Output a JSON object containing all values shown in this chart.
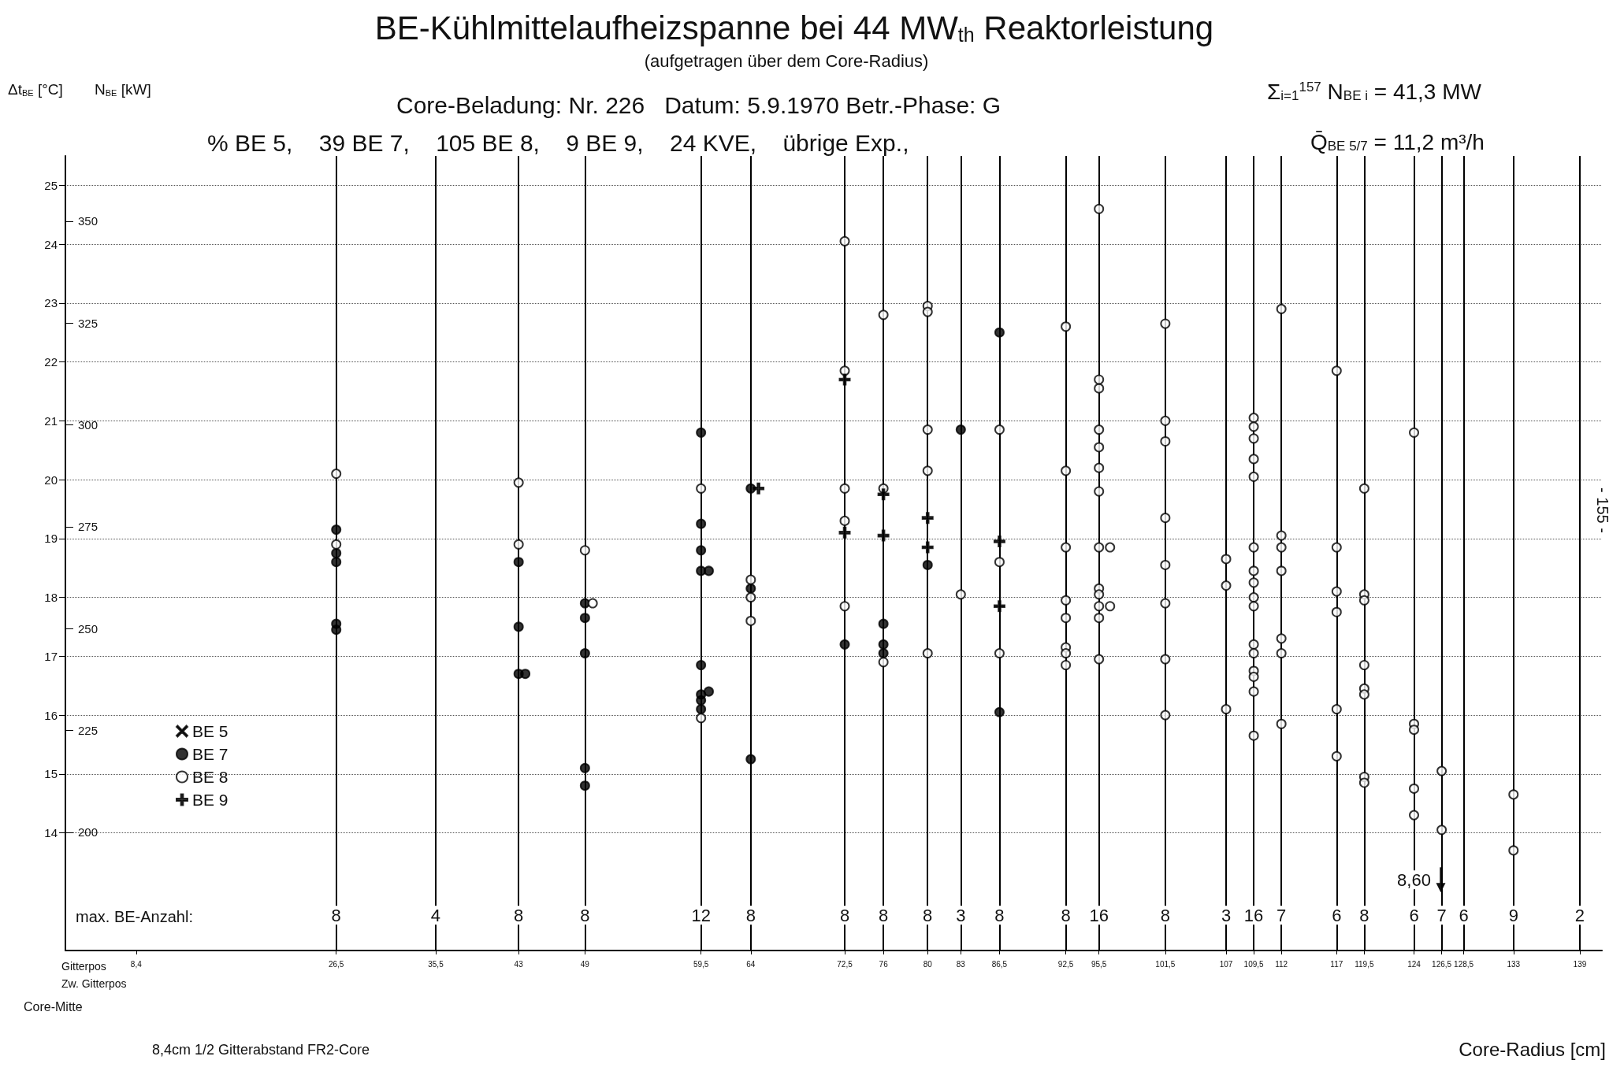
{
  "chart_data": {
    "type": "scatter",
    "title": "BE-Kühlmittelaufheizspanne bei 44 MW$_{th}$ Reaktorleistung",
    "subtitle": "(aufgetragen über dem Core-Radius)",
    "xlabel": "Core-Radius [cm]",
    "ylabel": "Δt$_{BE}$ [°C]",
    "y2label": "N$_{BE}$ [kW]",
    "annotations": [
      "Core-Beladung: Nr. 226   Datum: 5.9.1970 Betr.-Phase: G",
      "Σ$_{i=1}$$^{157}$ N$_{BE i}$ = 41,3 MW",
      "% BE 5,    39 BE 7,    105 BE 8,    9 BE 9,    24 KVE,    übrige Exp.,",
      "Q̄$_{BE 5/7}$ = 11,2 m³/h",
      "max. BE-Anzahl:",
      "Gitterpos",
      "Zw. Gitterpos",
      "Core-Mitte",
      "8,4cm 1/2 Gitterabstand FR2-Core",
      "- 155 -",
      {
        "text": "8",
        "x": 26.5,
        "y": 12.6
      },
      {
        "text": "4",
        "x": 35.5,
        "y": 12.6
      },
      {
        "text": "8",
        "x": 43,
        "y": 12.6
      },
      {
        "text": "8",
        "x": 49,
        "y": 12.6
      },
      {
        "text": "12",
        "x": 59.5,
        "y": 12.6
      },
      {
        "text": "8",
        "x": 64,
        "y": 12.6
      },
      {
        "text": "8",
        "x": 72.5,
        "y": 12.6
      },
      {
        "text": "8",
        "x": 76,
        "y": 12.6
      },
      {
        "text": "8",
        "x": 80,
        "y": 12.6
      },
      {
        "text": "3",
        "x": 83,
        "y": 12.6
      },
      {
        "text": "8",
        "x": 86.5,
        "y": 12.6
      },
      {
        "text": "8",
        "x": 92.5,
        "y": 12.6
      },
      {
        "text": "16",
        "x": 95.5,
        "y": 12.6
      },
      {
        "text": "8",
        "x": 101.5,
        "y": 12.6
      },
      {
        "text": "3",
        "x": 107,
        "y": 12.6
      },
      {
        "text": "16",
        "x": 109.5,
        "y": 12.6
      },
      {
        "text": "7",
        "x": 112,
        "y": 12.6
      },
      {
        "text": "6",
        "x": 117,
        "y": 12.6
      },
      {
        "text": "8",
        "x": 119.5,
        "y": 12.6
      },
      {
        "text": "6",
        "x": 124,
        "y": 12.6
      },
      {
        "text": "7",
        "x": 126.5,
        "y": 12.6
      },
      {
        "text": "6",
        "x": 128.5,
        "y": 12.6
      },
      {
        "text": "9",
        "x": 133,
        "y": 12.6
      },
      {
        "text": "2",
        "x": 139,
        "y": 12.6
      },
      {
        "text": "8,60",
        "x": 124,
        "y": 13.2
      }
    ],
    "series": [
      {
        "name": "BE 5",
        "color": "#000000",
        "marker": "x"
      },
      {
        "name": "BE 7",
        "color": "#000000",
        "marker": "circle",
        "x": [
          26.5,
          26.5,
          26.5,
          26.5,
          26.5,
          43,
          43,
          43,
          43.6,
          49,
          49,
          49,
          49,
          49,
          59.5,
          59.5,
          59.5,
          59.5,
          60.2,
          59.5,
          59.5,
          60.2,
          59.5,
          59.5,
          64,
          64,
          64,
          72.5,
          76,
          76,
          76,
          80,
          83,
          86.5,
          86.5
        ],
        "values": [
          19.15,
          18.75,
          18.6,
          17.55,
          17.45,
          18.6,
          17.5,
          16.7,
          16.7,
          17.9,
          17.65,
          17.05,
          15.1,
          14.8,
          20.8,
          19.25,
          18.8,
          18.45,
          18.45,
          16.85,
          16.35,
          16.4,
          16.25,
          16.1,
          19.85,
          18.15,
          15.25,
          17.2,
          17.55,
          17.2,
          17.05,
          18.55,
          20.85,
          22.5,
          16.05
        ]
      },
      {
        "name": "BE 8",
        "color": "#000000",
        "marker": "circle-open",
        "x": [
          26.5,
          26.5,
          43,
          43,
          49,
          49.7,
          59.5,
          59.5,
          64,
          64,
          64,
          72.5,
          72.5,
          72.5,
          72.5,
          72.5,
          76,
          76,
          76,
          80,
          80,
          80,
          80,
          80,
          83,
          86.5,
          86.5,
          86.5,
          92.5,
          92.5,
          92.5,
          92.5,
          92.5,
          92.5,
          92.5,
          92.5,
          95.5,
          95.5,
          95.5,
          95.5,
          95.5,
          95.5,
          95.5,
          95.5,
          96.5,
          95.5,
          95.5,
          95.5,
          96.5,
          95.5,
          95.5,
          101.5,
          101.5,
          101.5,
          101.5,
          101.5,
          101.5,
          101.5,
          101.5,
          107,
          107,
          107,
          109.5,
          109.5,
          109.5,
          109.5,
          109.5,
          109.5,
          109.5,
          109.5,
          109.5,
          109.5,
          109.5,
          109.5,
          109.5,
          109.5,
          109.5,
          109.5,
          112,
          112,
          112,
          112,
          112,
          112,
          112,
          117,
          117,
          117,
          117,
          117,
          117,
          119.5,
          119.5,
          119.5,
          119.5,
          119.5,
          119.5,
          119.5,
          119.5,
          124,
          124,
          124,
          124,
          124,
          126.5,
          126.5,
          133,
          133
        ],
        "values": [
          20.1,
          18.9,
          19.95,
          18.9,
          18.8,
          17.9,
          19.85,
          15.95,
          18.3,
          18.0,
          17.6,
          24.05,
          21.85,
          19.85,
          19.3,
          17.85,
          22.8,
          19.85,
          16.9,
          22.95,
          22.85,
          20.85,
          20.15,
          17.05,
          18.05,
          20.85,
          18.6,
          17.05,
          22.6,
          20.15,
          18.85,
          17.95,
          17.65,
          17.15,
          17.05,
          16.85,
          24.6,
          21.7,
          21.55,
          20.85,
          20.55,
          20.2,
          19.8,
          18.85,
          18.85,
          18.15,
          18.05,
          17.85,
          17.85,
          17.65,
          16.95,
          22.65,
          21.0,
          20.65,
          19.35,
          18.55,
          17.9,
          16.95,
          16.0,
          18.65,
          18.2,
          16.1,
          21.05,
          20.9,
          20.7,
          20.35,
          20.05,
          18.85,
          18.45,
          18.25,
          18.0,
          17.85,
          17.2,
          17.05,
          16.75,
          16.65,
          16.4,
          15.65,
          22.9,
          19.05,
          18.85,
          18.45,
          17.3,
          17.05,
          15.85,
          21.85,
          18.85,
          18.1,
          17.75,
          16.1,
          15.3,
          19.85,
          18.05,
          17.95,
          16.85,
          16.45,
          16.35,
          14.95,
          14.85,
          20.8,
          15.85,
          15.75,
          14.75,
          14.3,
          15.05,
          14.05,
          14.65,
          13.7
        ]
      },
      {
        "name": "BE 9",
        "color": "#000000",
        "marker": "cross",
        "x": [
          64.7,
          72.5,
          72.5,
          76,
          76,
          80,
          80,
          86.5,
          86.5
        ],
        "values": [
          19.85,
          21.7,
          19.1,
          19.75,
          19.05,
          19.35,
          18.85,
          18.95,
          17.85
        ]
      }
    ],
    "xlim": [
      2,
      141
    ],
    "xticks": [
      {
        "value": 8.4,
        "label": "8,4"
      },
      {
        "value": 26.5,
        "label": "26,5"
      },
      {
        "value": 35.5,
        "label": "35,5"
      },
      43,
      49,
      {
        "value": 59.5,
        "label": "59,5"
      },
      64,
      {
        "value": 72.5,
        "label": "72,5"
      },
      76,
      80,
      83,
      {
        "value": 86.5,
        "label": "86,5"
      },
      {
        "value": 92.5,
        "label": "92,5"
      },
      {
        "value": 95.5,
        "label": "95,5"
      },
      {
        "value": 101.5,
        "label": "101,5"
      },
      107,
      {
        "value": 109.5,
        "label": "109,5"
      },
      112,
      117,
      {
        "value": 119.5,
        "label": "119,5"
      },
      124,
      {
        "value": 126.5,
        "label": "126,5"
      },
      {
        "value": 128.5,
        "label": "128,5"
      },
      133,
      139
    ],
    "ylim": [
      12,
      25.5
    ],
    "yticks": [
      14,
      15,
      16,
      17,
      18,
      19,
      20,
      21,
      22,
      23,
      24,
      25
    ],
    "y2lim": [
      171,
      366
    ],
    "y2ticks": [
      200,
      225,
      250,
      275,
      300,
      325,
      350
    ],
    "grid": "y",
    "legend": "bottom left",
    "ref_lines": [
      {
        "axis": "x",
        "value": 26.5,
        "color": "#000000"
      },
      {
        "axis": "x",
        "value": 35.5,
        "color": "#000000"
      },
      {
        "axis": "x",
        "value": 43,
        "color": "#000000"
      },
      {
        "axis": "x",
        "value": 49,
        "color": "#000000"
      },
      {
        "axis": "x",
        "value": 59.5,
        "color": "#000000"
      },
      {
        "axis": "x",
        "value": 64,
        "color": "#000000"
      },
      {
        "axis": "x",
        "value": 72.5,
        "color": "#000000"
      },
      {
        "axis": "x",
        "value": 76,
        "color": "#000000"
      },
      {
        "axis": "x",
        "value": 80,
        "color": "#000000"
      },
      {
        "axis": "x",
        "value": 83,
        "color": "#000000"
      },
      {
        "axis": "x",
        "value": 86.5,
        "color": "#000000"
      },
      {
        "axis": "x",
        "value": 92.5,
        "color": "#000000"
      },
      {
        "axis": "x",
        "value": 95.5,
        "color": "#000000"
      },
      {
        "axis": "x",
        "value": 101.5,
        "color": "#000000"
      },
      {
        "axis": "x",
        "value": 107,
        "color": "#000000"
      },
      {
        "axis": "x",
        "value": 109.5,
        "color": "#000000"
      },
      {
        "axis": "x",
        "value": 112,
        "color": "#000000"
      },
      {
        "axis": "x",
        "value": 117,
        "color": "#000000"
      },
      {
        "axis": "x",
        "value": 119.5,
        "color": "#000000"
      },
      {
        "axis": "x",
        "value": 124,
        "color": "#000000"
      },
      {
        "axis": "x",
        "value": 126.5,
        "color": "#000000"
      },
      {
        "axis": "x",
        "value": 128.5,
        "color": "#000000"
      },
      {
        "axis": "x",
        "value": 133,
        "color": "#000000"
      },
      {
        "axis": "x",
        "value": 139,
        "color": "#000000"
      }
    ]
  }
}
